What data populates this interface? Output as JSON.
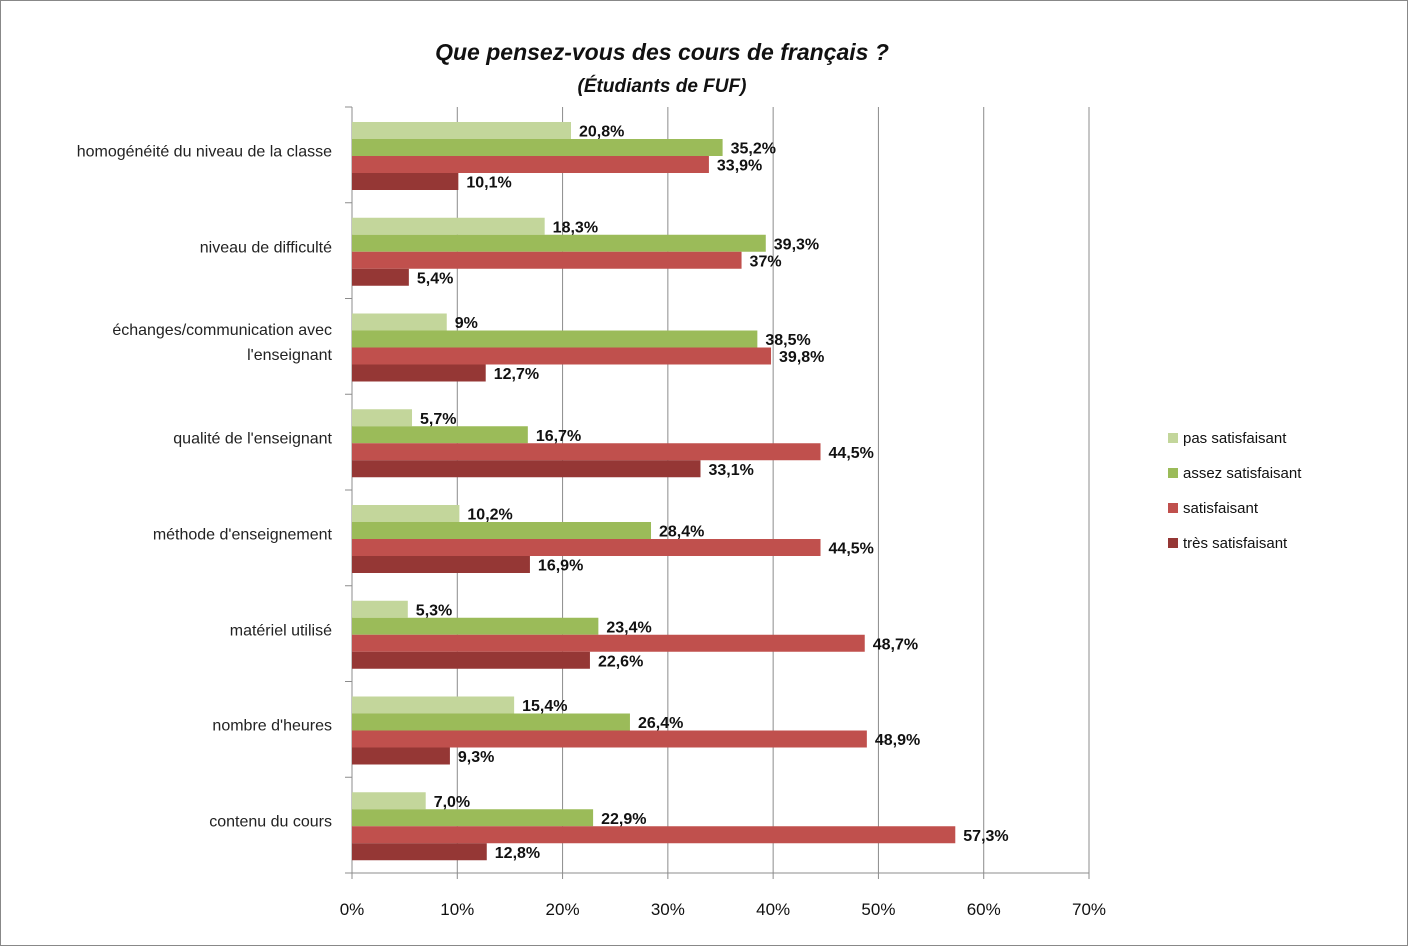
{
  "chart_data": {
    "type": "bar",
    "orientation": "horizontal",
    "title": "Que pensez-vous des cours de français ?",
    "subtitle": "(Étudiants de FUF)",
    "categories": [
      "homogénéité du niveau de la classe",
      "niveau de difficulté",
      "échanges/communication avec l'enseignant",
      "qualité de l'enseignant",
      "méthode d'enseignement",
      "matériel utilisé",
      "nombre d'heures",
      "contenu du cours"
    ],
    "series": [
      {
        "name": "pas satisfaisant",
        "color": "#c3d69b",
        "values": [
          20.8,
          18.3,
          9,
          5.7,
          10.2,
          5.3,
          15.4,
          7.0
        ],
        "value_labels": [
          "20,8%",
          "18,3%",
          "9%",
          "5,7%",
          "10,2%",
          "5,3%",
          "15,4%",
          "7,0%"
        ]
      },
      {
        "name": "assez satisfaisant",
        "color": "#9bbb59",
        "values": [
          35.2,
          39.3,
          38.5,
          16.7,
          28.4,
          23.4,
          26.4,
          22.9
        ],
        "value_labels": [
          "35,2%",
          "39,3%",
          "38,5%",
          "16,7%",
          "28,4%",
          "23,4%",
          "26,4%",
          "22,9%"
        ]
      },
      {
        "name": "satisfaisant",
        "color": "#c0504d",
        "values": [
          33.9,
          37,
          39.8,
          44.5,
          44.5,
          48.7,
          48.9,
          57.3
        ],
        "value_labels": [
          "33,9%",
          "37%",
          "39,8%",
          "44,5%",
          "44,5%",
          "48,7%",
          "48,9%",
          "57,3%"
        ]
      },
      {
        "name": "très satisfaisant",
        "color": "#953735",
        "values": [
          10.1,
          5.4,
          12.7,
          33.1,
          16.9,
          22.6,
          9.3,
          12.8
        ],
        "value_labels": [
          "10,1%",
          "5,4%",
          "12,7%",
          "33,1%",
          "16,9%",
          "22,6%",
          "9,3%",
          "12,8%"
        ]
      }
    ],
    "xlim": [
      0,
      70
    ],
    "xticks": [
      {
        "value": 0,
        "label": "0%"
      },
      {
        "value": 10,
        "label": "10%"
      },
      {
        "value": 20,
        "label": "20%"
      },
      {
        "value": 30,
        "label": "30%"
      },
      {
        "value": 40,
        "label": "40%"
      },
      {
        "value": 50,
        "label": "50%"
      },
      {
        "value": 60,
        "label": "60%"
      },
      {
        "value": 70,
        "label": "70%"
      }
    ],
    "grid": true,
    "legend": "right"
  }
}
